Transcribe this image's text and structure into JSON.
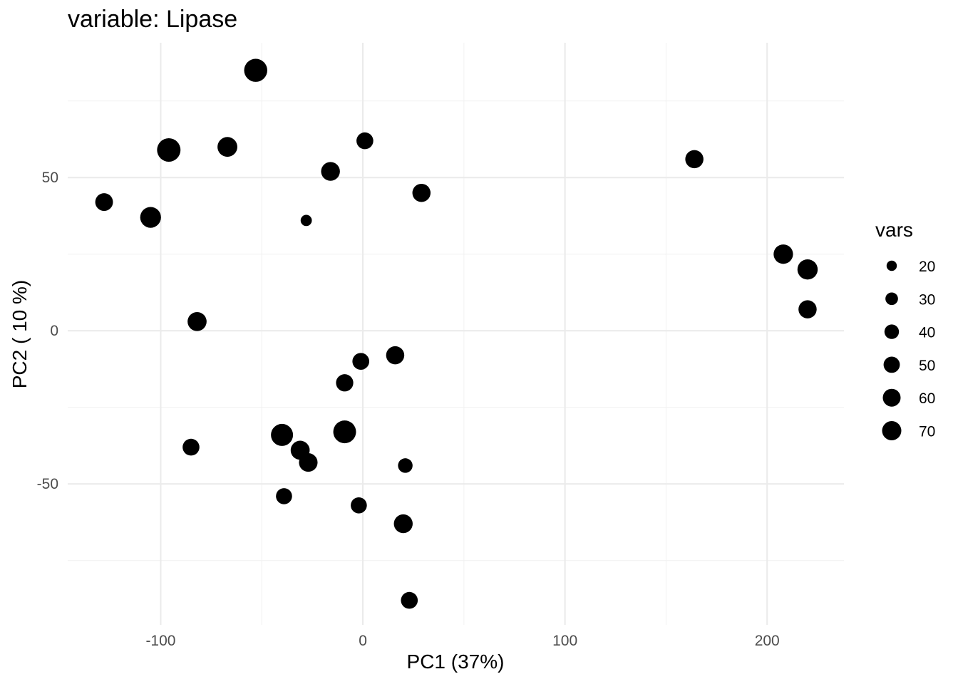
{
  "chart_data": {
    "type": "scatter",
    "title": "variable: Lipase",
    "xlabel": "PC1 (37%)",
    "ylabel": "PC2 ( 10 %)",
    "xlim": [
      -146,
      238
    ],
    "ylim": [
      -96,
      94
    ],
    "x_ticks": [
      -100,
      0,
      100,
      200
    ],
    "x_tick_labels": [
      "-100",
      "0",
      "100",
      "200"
    ],
    "y_ticks": [
      -50,
      0,
      50
    ],
    "y_tick_labels": [
      "-50",
      "0",
      "50"
    ],
    "grid": true,
    "point_color": "#000000",
    "size_variable": "vars",
    "legend": {
      "title": "vars",
      "position": "right",
      "entries": [
        {
          "label": "20",
          "value": 20
        },
        {
          "label": "30",
          "value": 30
        },
        {
          "label": "40",
          "value": 40
        },
        {
          "label": "50",
          "value": 50
        },
        {
          "label": "60",
          "value": 60
        },
        {
          "label": "70",
          "value": 70
        }
      ]
    },
    "points": [
      {
        "x": -53,
        "y": 85,
        "vars": 68
      },
      {
        "x": -96,
        "y": 59,
        "vars": 70
      },
      {
        "x": -67,
        "y": 60,
        "vars": 50
      },
      {
        "x": 1,
        "y": 62,
        "vars": 36
      },
      {
        "x": -16,
        "y": 52,
        "vars": 45
      },
      {
        "x": -128,
        "y": 42,
        "vars": 40
      },
      {
        "x": -105,
        "y": 37,
        "vars": 55
      },
      {
        "x": -28,
        "y": 36,
        "vars": 16
      },
      {
        "x": 29,
        "y": 45,
        "vars": 42
      },
      {
        "x": 164,
        "y": 56,
        "vars": 42
      },
      {
        "x": 208,
        "y": 25,
        "vars": 48
      },
      {
        "x": 220,
        "y": 20,
        "vars": 52
      },
      {
        "x": 220,
        "y": 7,
        "vars": 42
      },
      {
        "x": -82,
        "y": 3,
        "vars": 46
      },
      {
        "x": 16,
        "y": -8,
        "vars": 42
      },
      {
        "x": -1,
        "y": -10,
        "vars": 36
      },
      {
        "x": -9,
        "y": -17,
        "vars": 38
      },
      {
        "x": -40,
        "y": -34,
        "vars": 62
      },
      {
        "x": -9,
        "y": -33,
        "vars": 66
      },
      {
        "x": -31,
        "y": -39,
        "vars": 46
      },
      {
        "x": -27,
        "y": -43,
        "vars": 44
      },
      {
        "x": -85,
        "y": -38,
        "vars": 36
      },
      {
        "x": 21,
        "y": -44,
        "vars": 27
      },
      {
        "x": -39,
        "y": -54,
        "vars": 33
      },
      {
        "x": -2,
        "y": -57,
        "vars": 33
      },
      {
        "x": 20,
        "y": -63,
        "vars": 45
      },
      {
        "x": 23,
        "y": -88,
        "vars": 36
      }
    ]
  }
}
